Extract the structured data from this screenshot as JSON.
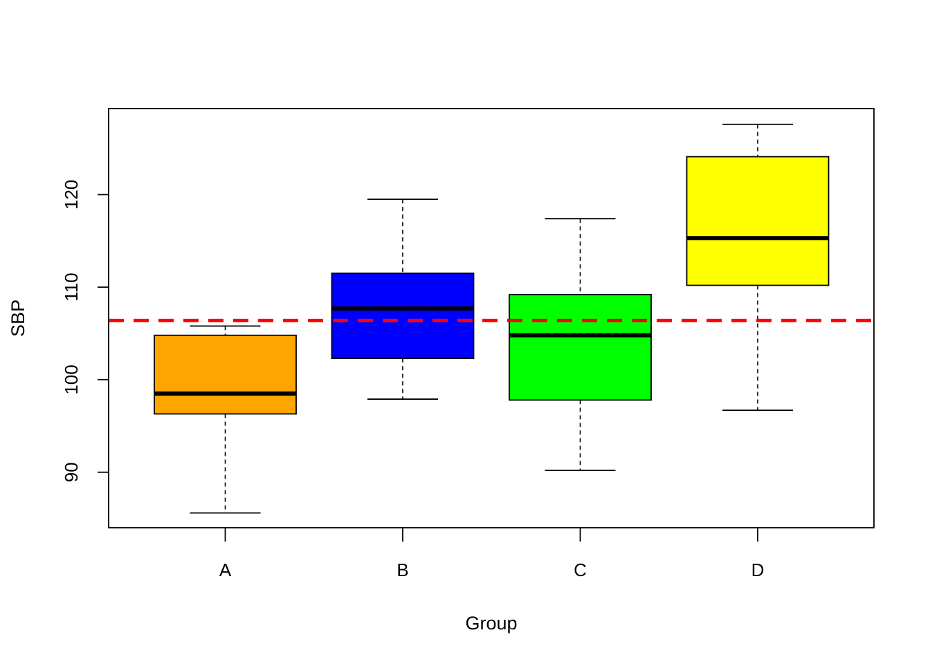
{
  "chart_data": {
    "type": "boxplot",
    "title": "",
    "xlabel": "Group",
    "ylabel": "SBP",
    "ylim": [
      84,
      129.3
    ],
    "y_ticks": [
      90,
      100,
      110,
      120
    ],
    "y_tick_labels": [
      "90",
      "100",
      "110",
      "120"
    ],
    "categories": [
      "A",
      "B",
      "C",
      "D"
    ],
    "boxes": [
      {
        "category": "A",
        "color": "#FFA500",
        "whisker_low": 85.6,
        "q1": 96.3,
        "median": 98.5,
        "q3": 104.8,
        "whisker_high": 105.8
      },
      {
        "category": "B",
        "color": "#0000FF",
        "whisker_low": 97.9,
        "q1": 102.3,
        "median": 107.7,
        "q3": 111.5,
        "whisker_high": 119.5
      },
      {
        "category": "C",
        "color": "#00FF00",
        "whisker_low": 90.2,
        "q1": 97.8,
        "median": 104.8,
        "q3": 109.2,
        "whisker_high": 117.4
      },
      {
        "category": "D",
        "color": "#FFFF00",
        "whisker_low": 96.7,
        "q1": 110.2,
        "median": 115.3,
        "q3": 124.1,
        "whisker_high": 127.6
      }
    ],
    "reference_line": {
      "y": 106.4,
      "color": "#FF0000",
      "style": "dashed"
    },
    "grid": false,
    "legend": "none"
  }
}
